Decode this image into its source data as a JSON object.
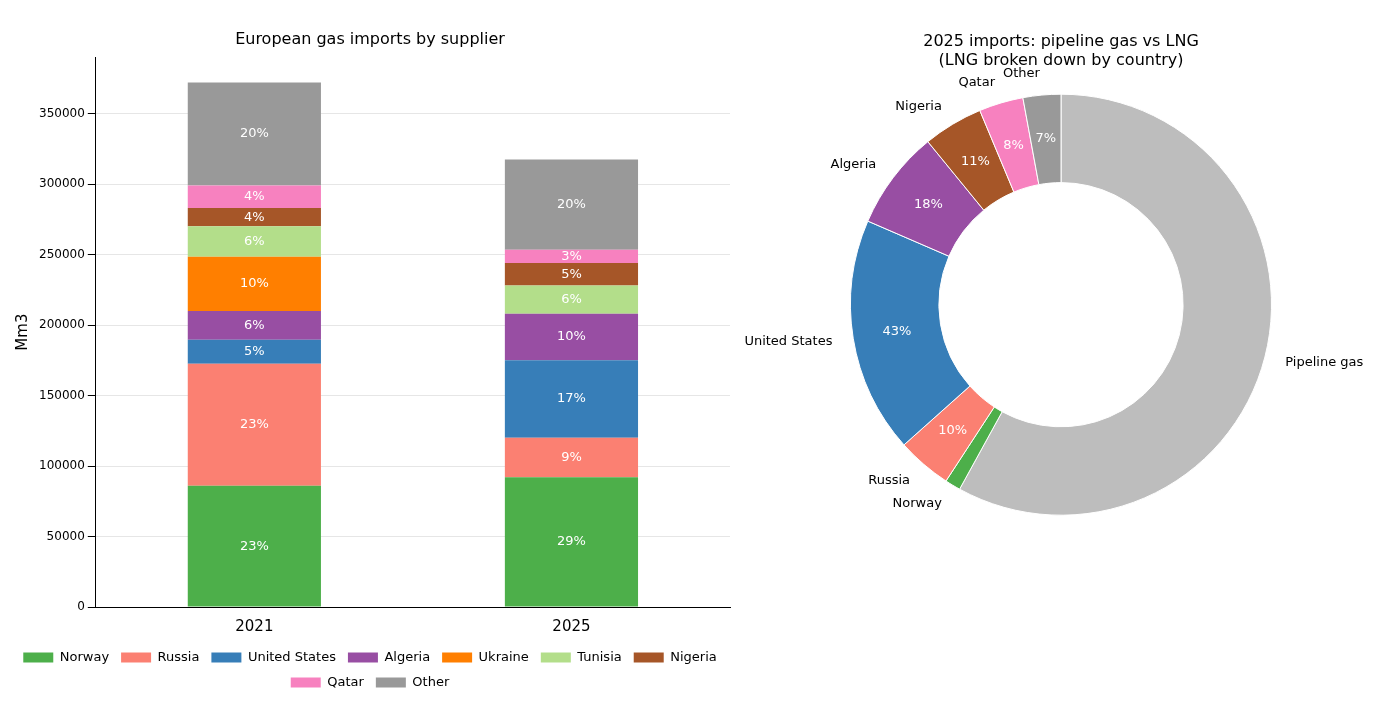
{
  "chart_data": [
    {
      "type": "bar",
      "title": "European gas imports by supplier",
      "ylabel": "Mm3",
      "categories": [
        "2021",
        "2025"
      ],
      "stacked": true,
      "ylim": [
        0,
        390000
      ],
      "yticks": [
        0,
        50000,
        100000,
        150000,
        200000,
        250000,
        300000,
        350000
      ],
      "grid": "y",
      "legend": "bottom",
      "series": [
        {
          "name": "Norway",
          "color": "#4daf4a",
          "values": [
            86000,
            92000
          ]
        },
        {
          "name": "Russia",
          "color": "#fb8072",
          "values": [
            86500,
            28000
          ]
        },
        {
          "name": "United States",
          "color": "#377eb8",
          "values": [
            17000,
            55000
          ]
        },
        {
          "name": "Algeria",
          "color": "#984ea3",
          "values": [
            20500,
            33000
          ]
        },
        {
          "name": "Ukraine",
          "color": "#ff7f00",
          "values": [
            38500,
            0
          ]
        },
        {
          "name": "Tunisia",
          "color": "#b3de8a",
          "values": [
            21500,
            20000
          ]
        },
        {
          "name": "Nigeria",
          "color": "#a65628",
          "values": [
            13000,
            16000
          ]
        },
        {
          "name": "Qatar",
          "color": "#f781bf",
          "values": [
            16000,
            9500
          ]
        },
        {
          "name": "Other",
          "color": "#999999",
          "values": [
            73000,
            64000
          ]
        }
      ],
      "annotations": [
        "23%",
        "23%",
        "5%",
        "6%",
        "10%",
        "6%",
        "4%",
        "4%",
        "20%",
        "29%",
        "9%",
        "17%",
        "10%",
        "6%",
        "5%",
        "3%",
        "20%"
      ]
    },
    {
      "type": "donut",
      "title": "2025 imports: pipeline gas vs LNG\n(LNG broken down by country)",
      "categories": [
        "Pipeline gas",
        "Norway",
        "Russia",
        "United States",
        "Algeria",
        "Nigeria",
        "Qatar",
        "Other"
      ],
      "values": [
        58,
        1.2,
        4.2,
        18.1,
        7.6,
        4.6,
        3.4,
        2.9
      ],
      "colors": [
        "#bdbdbd",
        "#4daf4a",
        "#fb8072",
        "#377eb8",
        "#984ea3",
        "#a65628",
        "#f781bf",
        "#999999"
      ],
      "annotations": [
        {
          "text": "10%",
          "x": "Russia"
        },
        {
          "text": "43%",
          "x": "United States"
        },
        {
          "text": "18%",
          "x": "Algeria"
        },
        {
          "text": "11%",
          "x": "Nigeria"
        },
        {
          "text": "8%",
          "x": "Qatar"
        },
        {
          "text": "7%",
          "x": "Other"
        }
      ]
    }
  ]
}
